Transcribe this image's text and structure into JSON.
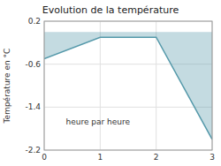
{
  "chart_data": {
    "type": "area",
    "title": "Evolution de la température",
    "xlabel": "heure par heure",
    "ylabel": "Température en °C",
    "x": [
      0,
      1,
      2,
      3
    ],
    "values": [
      -0.5,
      -0.1,
      -0.1,
      -2.0
    ],
    "color": "#5599aa",
    "xlim": [
      0,
      3
    ],
    "ylim": [
      -2.2,
      0.2
    ],
    "xticks": [
      0,
      1,
      2,
      3
    ],
    "yticks": [
      0.2,
      -0.6,
      -1.4,
      -2.2
    ],
    "grid": true
  }
}
